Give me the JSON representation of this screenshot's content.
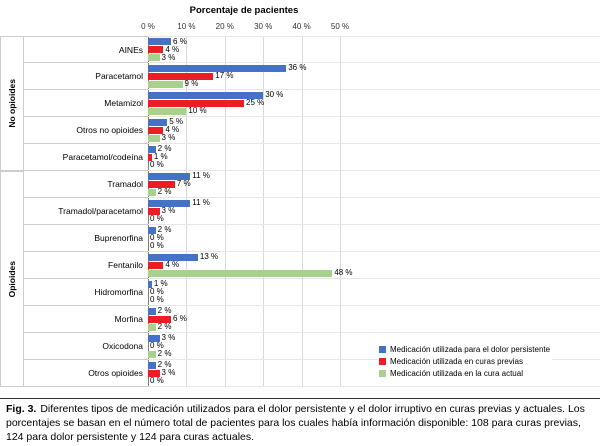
{
  "chart_data": {
    "type": "bar",
    "orientation": "horizontal",
    "title": "Porcentaje de pacientes",
    "xlabel": "Porcentaje de pacientes",
    "ylabel": "",
    "xlim": [
      0,
      50
    ],
    "x_tick_labels": [
      "0 %",
      "10 %",
      "20 %",
      "30 %",
      "40 %",
      "50 %"
    ],
    "grid": "vertical-on",
    "legend_position": "bottom-right",
    "value_suffix": " %",
    "groups": [
      {
        "name": "No opioides",
        "count": 5
      },
      {
        "name": "Opioides",
        "count": 8
      }
    ],
    "categories": [
      "AINEs",
      "Paracetamol",
      "Metamizol",
      "Otros no opioides",
      "Paracetamol/codeína",
      "Tramadol",
      "Tramadol/paracetamol",
      "Buprenorfina",
      "Fentanilo",
      "Hidromorfina",
      "Morfina",
      "Oxicodona",
      "Otros opioides"
    ],
    "series": [
      {
        "key": "dolor-persistente",
        "name": "Medicación utilizada para el dolor persistente",
        "color": "#4472c4",
        "values": [
          6,
          36,
          30,
          5,
          2,
          11,
          11,
          2,
          13,
          1,
          2,
          3,
          2
        ]
      },
      {
        "key": "curas-previas",
        "name": "Medicación utilizada en curas previas",
        "color": "#ee1c25",
        "values": [
          4,
          17,
          25,
          4,
          1,
          7,
          3,
          0,
          4,
          0,
          6,
          0,
          3
        ]
      },
      {
        "key": "cura-actual",
        "name": "Medicación utilizada en la cura actual",
        "color": "#a9d18e",
        "values": [
          3,
          9,
          10,
          3,
          0,
          2,
          0,
          0,
          48,
          0,
          2,
          2,
          0
        ]
      }
    ]
  },
  "caption": {
    "fig_label": "Fig. 3.",
    "text": "Diferentes tipos de medicación utilizados para el dolor persistente y el dolor irruptivo en curas previas y actuales. Los porcentajes se basan en el número total de pacientes para los cuales había información disponible: 108 para curas previas, 124 para dolor persistente y 124 para curas actuales."
  }
}
